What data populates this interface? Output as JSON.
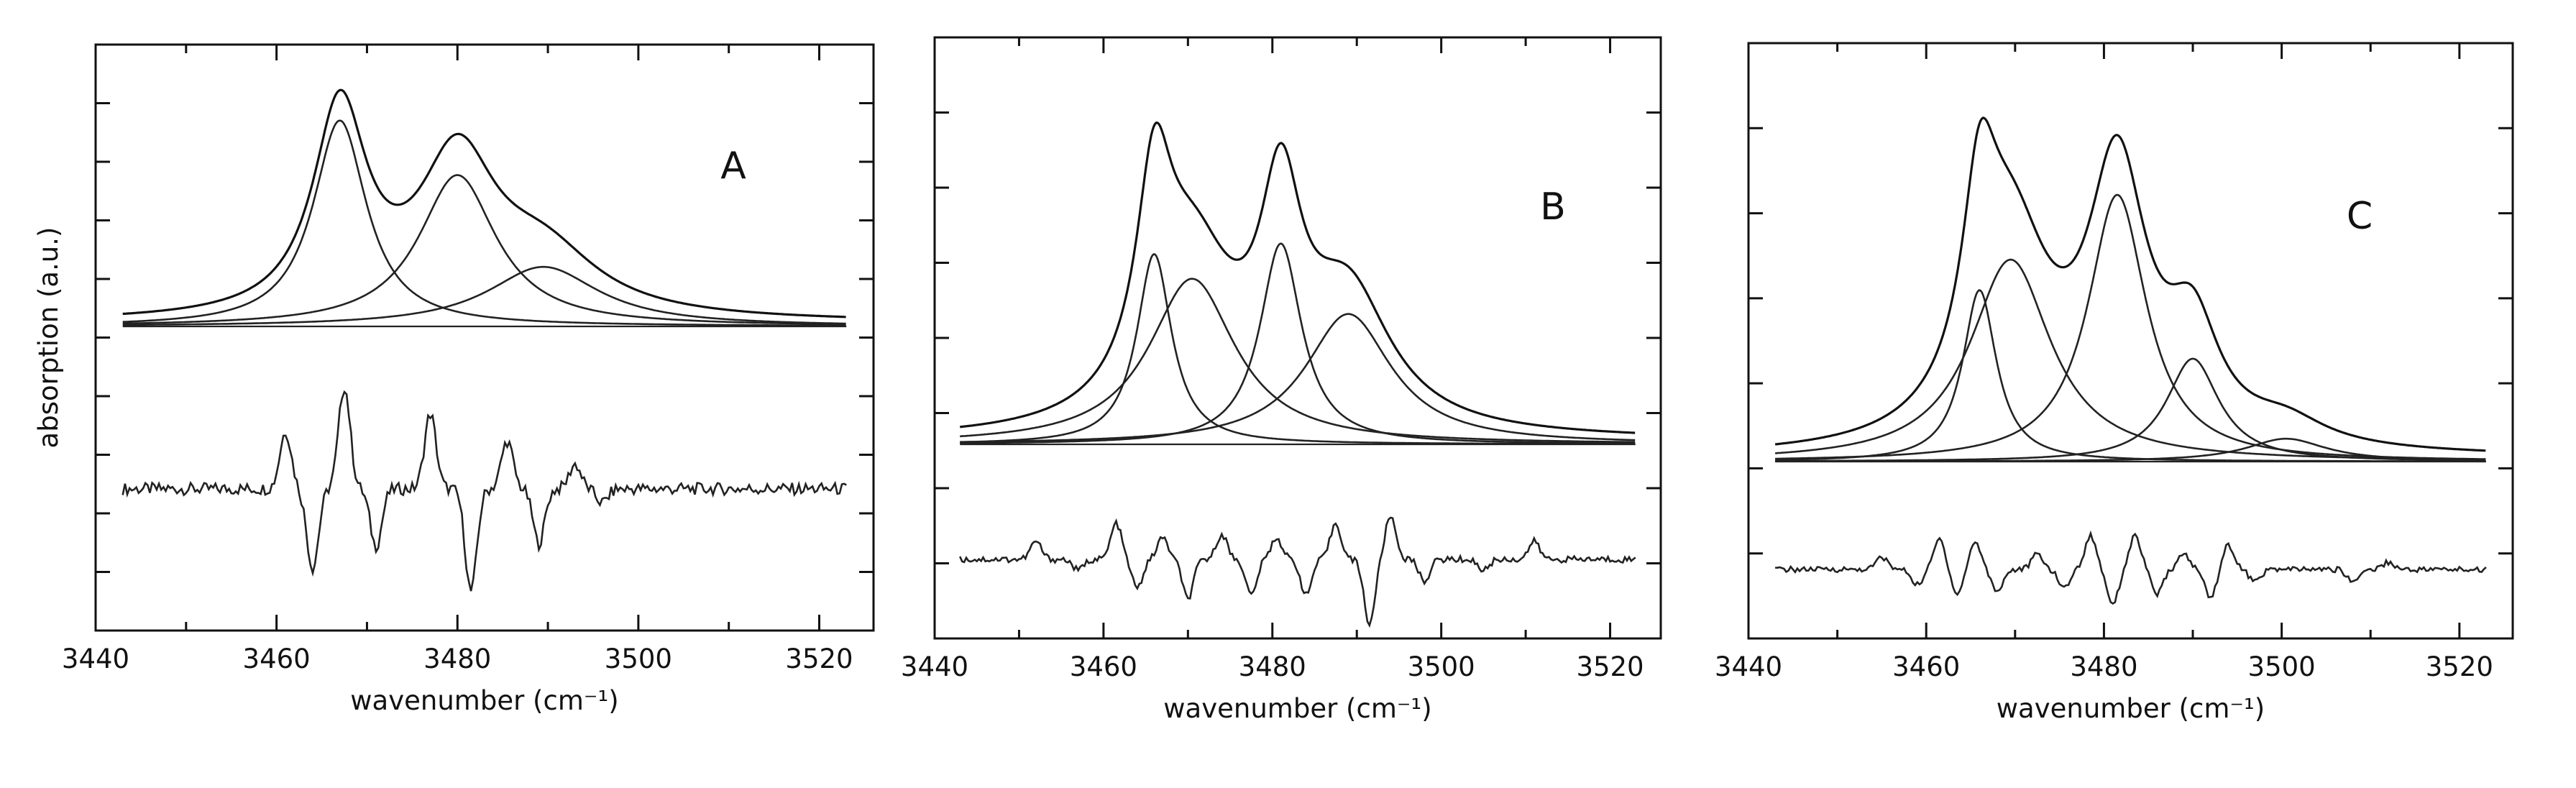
{
  "chart_data": [
    {
      "type": "line",
      "panel_label": "A",
      "xlabel": "wavenumber (cm⁻¹)",
      "ylabel": "absorption (a.u.)",
      "xlim": [
        3440,
        3526
      ],
      "x_ticks": [
        "3440",
        "3460",
        "3480",
        "3500",
        "3520"
      ],
      "y_ticks": 9,
      "x_range_data": [
        3443,
        3523
      ],
      "components": [
        {
          "center": 3467,
          "width": 3.6,
          "height": 0.83
        },
        {
          "center": 3480,
          "width": 5.2,
          "height": 0.61
        },
        {
          "center": 3489.5,
          "width": 7.5,
          "height": 0.24
        }
      ],
      "residual_peaks": [
        {
          "x": 3461,
          "y": 0.42
        },
        {
          "x": 3464,
          "y": -0.58
        },
        {
          "x": 3467.5,
          "y": 0.75
        },
        {
          "x": 3471,
          "y": -0.42
        },
        {
          "x": 3477,
          "y": 0.55
        },
        {
          "x": 3481.5,
          "y": -0.75
        },
        {
          "x": 3485.5,
          "y": 0.35
        },
        {
          "x": 3489,
          "y": -0.4
        },
        {
          "x": 3493,
          "y": 0.18
        },
        {
          "x": 3496,
          "y": -0.1
        }
      ]
    },
    {
      "type": "line",
      "panel_label": "B",
      "xlabel": "wavenumber (cm⁻¹)",
      "ylabel": "",
      "xlim": [
        3440,
        3526
      ],
      "x_ticks": [
        "3440",
        "3460",
        "3480",
        "3500",
        "3520"
      ],
      "y_ticks": 7,
      "x_range_data": [
        3443,
        3523
      ],
      "components": [
        {
          "center": 3466,
          "width": 2.5,
          "height": 0.54
        },
        {
          "center": 3470.5,
          "width": 6.2,
          "height": 0.47
        },
        {
          "center": 3481,
          "width": 3.0,
          "height": 0.57
        },
        {
          "center": 3489,
          "width": 6.2,
          "height": 0.37
        }
      ],
      "residual_peaks": [
        {
          "x": 3452,
          "y": 0.25
        },
        {
          "x": 3457,
          "y": -0.15
        },
        {
          "x": 3461.5,
          "y": 0.5
        },
        {
          "x": 3464,
          "y": -0.4
        },
        {
          "x": 3467,
          "y": 0.3
        },
        {
          "x": 3470,
          "y": -0.55
        },
        {
          "x": 3474,
          "y": 0.35
        },
        {
          "x": 3477.5,
          "y": -0.5
        },
        {
          "x": 3480.5,
          "y": 0.3
        },
        {
          "x": 3484,
          "y": -0.5
        },
        {
          "x": 3487.5,
          "y": 0.5
        },
        {
          "x": 3491.5,
          "y": -0.9
        },
        {
          "x": 3494,
          "y": 0.6
        },
        {
          "x": 3498,
          "y": -0.3
        },
        {
          "x": 3505,
          "y": -0.15
        },
        {
          "x": 3511,
          "y": 0.25
        }
      ]
    },
    {
      "type": "line",
      "panel_label": "C",
      "xlabel": "wavenumber (cm⁻¹)",
      "ylabel": "",
      "xlim": [
        3440,
        3526
      ],
      "x_ticks": [
        "3440",
        "3460",
        "3480",
        "3500",
        "3520"
      ],
      "y_ticks": 6,
      "x_range_data": [
        3443,
        3523
      ],
      "components": [
        {
          "center": 3466,
          "width": 2.3,
          "height": 0.45
        },
        {
          "center": 3469.5,
          "width": 5.5,
          "height": 0.53
        },
        {
          "center": 3481.5,
          "width": 4.0,
          "height": 0.7
        },
        {
          "center": 3490,
          "width": 3.6,
          "height": 0.27
        },
        {
          "center": 3500.5,
          "width": 5.5,
          "height": 0.06
        }
      ],
      "residual_peaks": [
        {
          "x": 3455,
          "y": 0.2
        },
        {
          "x": 3459,
          "y": -0.25
        },
        {
          "x": 3461.5,
          "y": 0.5
        },
        {
          "x": 3463.5,
          "y": -0.4
        },
        {
          "x": 3465.5,
          "y": 0.45
        },
        {
          "x": 3468,
          "y": -0.35
        },
        {
          "x": 3472.5,
          "y": 0.25
        },
        {
          "x": 3475.5,
          "y": -0.3
        },
        {
          "x": 3478.5,
          "y": 0.55
        },
        {
          "x": 3481,
          "y": -0.55
        },
        {
          "x": 3483.5,
          "y": 0.55
        },
        {
          "x": 3486,
          "y": -0.4
        },
        {
          "x": 3489,
          "y": 0.25
        },
        {
          "x": 3492,
          "y": -0.45
        },
        {
          "x": 3494,
          "y": 0.4
        },
        {
          "x": 3497,
          "y": -0.2
        },
        {
          "x": 3508,
          "y": -0.2
        },
        {
          "x": 3512,
          "y": 0.12
        }
      ]
    }
  ]
}
